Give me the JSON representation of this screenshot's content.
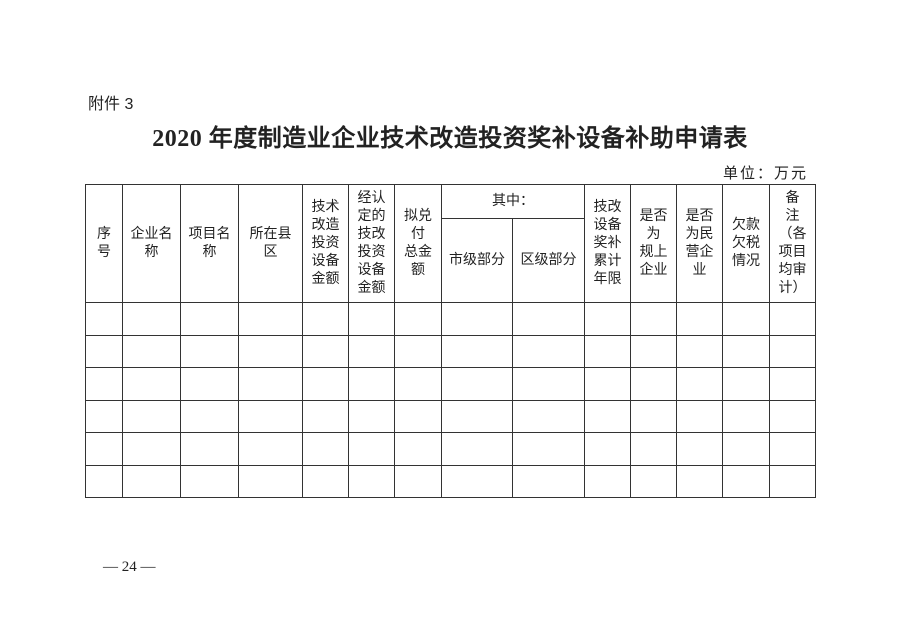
{
  "attachment_label": "附件 3",
  "title": "2020 年度制造业企业技术改造投资奖补设备补助申请表",
  "unit": "单位：万元",
  "table": {
    "columns": [
      "序\n号",
      "企业名\n称",
      "项目名\n称",
      "所在县\n区",
      "技术\n改造\n投资\n设备\n金额",
      "经认\n定的\n技改\n投资\n设备\n金额",
      "拟兑\n付\n总金\n额",
      "其中：",
      "技改\n设备\n奖补\n累计\n年限",
      "是否\n为\n规上\n企业",
      "是否\n为民\n营企\n业",
      "欠款\n欠税\n情况",
      "备\n注\n（各\n项目\n均审\n计）"
    ],
    "sub_columns": [
      "市级部分",
      "区级部分"
    ],
    "rows": [
      [
        "",
        "",
        "",
        "",
        "",
        "",
        "",
        "",
        "",
        "",
        "",
        "",
        "",
        ""
      ],
      [
        "",
        "",
        "",
        "",
        "",
        "",
        "",
        "",
        "",
        "",
        "",
        "",
        "",
        ""
      ],
      [
        "",
        "",
        "",
        "",
        "",
        "",
        "",
        "",
        "",
        "",
        "",
        "",
        "",
        ""
      ],
      [
        "",
        "",
        "",
        "",
        "",
        "",
        "",
        "",
        "",
        "",
        "",
        "",
        "",
        ""
      ],
      [
        "",
        "",
        "",
        "",
        "",
        "",
        "",
        "",
        "",
        "",
        "",
        "",
        "",
        ""
      ],
      [
        "",
        "",
        "",
        "",
        "",
        "",
        "",
        "",
        "",
        "",
        "",
        "",
        "",
        ""
      ]
    ]
  },
  "page_number": "— 24 —"
}
